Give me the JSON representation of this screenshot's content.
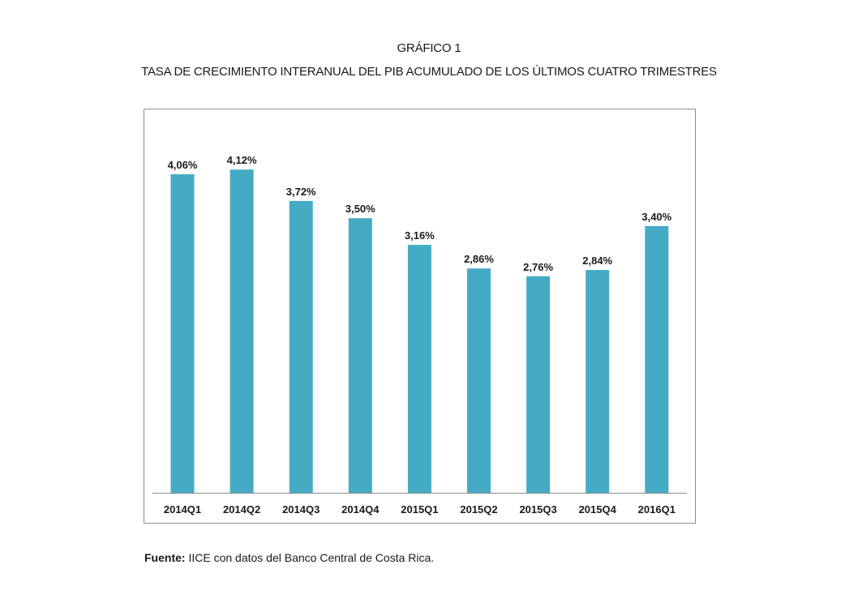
{
  "title_line1": "GRÁFICO 1",
  "title_line2": "TASA DE CRECIMIENTO INTERANUAL DEL PIB ACUMULADO DE LOS ÚLTIMOS CUATRO TRIMESTRES",
  "source_label": "Fuente:",
  "source_text": " IICE con datos del Banco Central de Costa Rica.",
  "colors": {
    "bar": "#45abc5",
    "axis": "#8c8c8c",
    "frame": "#8c8c8c",
    "text": "#1a1a1a"
  },
  "chart_data": {
    "type": "bar",
    "categories": [
      "2014Q1",
      "2014Q2",
      "2014Q3",
      "2014Q4",
      "2015Q1",
      "2015Q2",
      "2015Q3",
      "2015Q4",
      "2016Q1"
    ],
    "values": [
      4.06,
      4.12,
      3.72,
      3.5,
      3.16,
      2.86,
      2.76,
      2.84,
      3.4
    ],
    "data_labels": [
      "4,06%",
      "4,12%",
      "3,72%",
      "3,50%",
      "3,16%",
      "2,86%",
      "2,76%",
      "2,84%",
      "3,40%"
    ],
    "title": "TASA DE CRECIMIENTO INTERANUAL DEL PIB ACUMULADO DE LOS ÚLTIMOS CUATRO TRIMESTRES",
    "xlabel": "",
    "ylabel": "",
    "grid": false,
    "legend": "none"
  }
}
